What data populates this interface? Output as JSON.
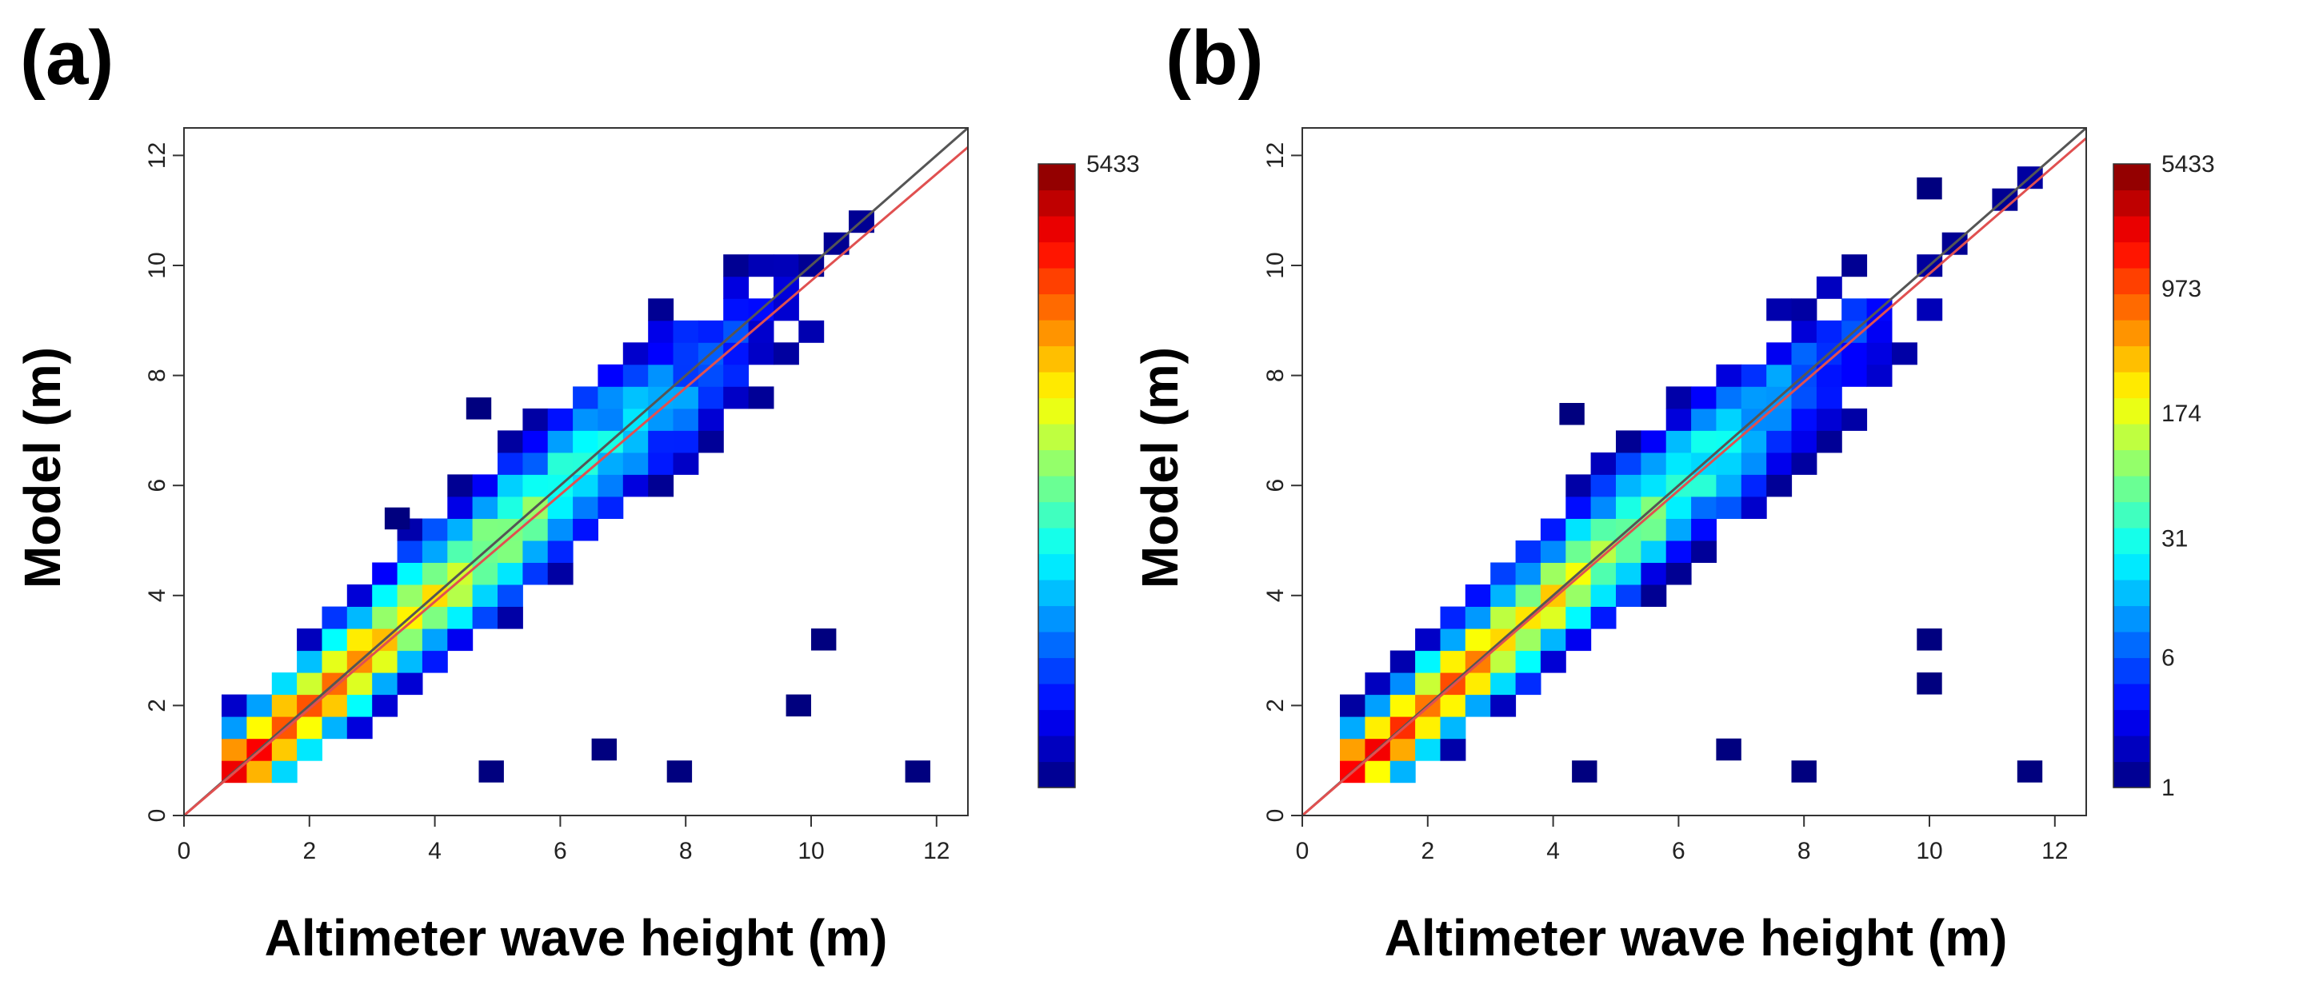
{
  "figure": {
    "colors": {
      "diagonal": "#555555",
      "fit": "#e05050",
      "frame": "#333333",
      "background": "#ffffff"
    },
    "colormap": [
      "#00007f",
      "#0000ff",
      "#007fff",
      "#00ffff",
      "#7fff7f",
      "#ffff00",
      "#ff7f00",
      "#ff0000",
      "#7f0000"
    ]
  },
  "chart_data": [
    {
      "panel_label": "(a)",
      "type": "heatmap",
      "title": "",
      "xlabel": "Altimeter wave height (m)",
      "ylabel": "Model (m)",
      "xlim": [
        0,
        12.5
      ],
      "ylim": [
        0,
        12.5
      ],
      "xticks": [
        "0",
        "2",
        "4",
        "6",
        "8",
        "10",
        "12"
      ],
      "yticks": [
        "0",
        "2",
        "4",
        "6",
        "8",
        "10",
        "12"
      ],
      "bin_size": 0.4,
      "colorbar": {
        "min": 1,
        "max": 5433,
        "scale": "log",
        "tick_labels": [
          {
            "value": 5433,
            "label": "5433"
          }
        ]
      },
      "one_to_one_line": true,
      "regression": {
        "slope": 0.972,
        "intercept": 0.0
      },
      "scatter_outliers": [
        [
          10,
          3
        ],
        [
          9.6,
          1.8
        ],
        [
          6.5,
          1
        ],
        [
          7.7,
          0.6
        ],
        [
          11.5,
          0.6
        ],
        [
          4.7,
          0.6
        ],
        [
          4.5,
          7.2
        ],
        [
          3.2,
          5.2
        ]
      ]
    },
    {
      "panel_label": "(b)",
      "type": "heatmap",
      "title": "",
      "xlabel": "Altimeter wave height (m)",
      "ylabel": "Model (m)",
      "xlim": [
        0,
        12.5
      ],
      "ylim": [
        0,
        12.5
      ],
      "xticks": [
        "0",
        "2",
        "4",
        "6",
        "8",
        "10",
        "12"
      ],
      "yticks": [
        "0",
        "2",
        "4",
        "6",
        "8",
        "10",
        "12"
      ],
      "bin_size": 0.4,
      "colorbar": {
        "min": 1,
        "max": 5433,
        "scale": "log",
        "tick_labels": [
          {
            "value": 5433,
            "label": "5433"
          },
          {
            "value": 973,
            "label": "973"
          },
          {
            "value": 174,
            "label": "174"
          },
          {
            "value": 31,
            "label": "31"
          },
          {
            "value": 6,
            "label": "6"
          },
          {
            "value": 1,
            "label": "1"
          }
        ]
      },
      "one_to_one_line": true,
      "regression": {
        "slope": 0.985,
        "intercept": 0.0
      },
      "scatter_outliers": [
        [
          9.8,
          3
        ],
        [
          9.8,
          2.2
        ],
        [
          6.6,
          1
        ],
        [
          7.8,
          0.6
        ],
        [
          11.4,
          0.6
        ],
        [
          4.3,
          0.6
        ],
        [
          4.1,
          7.1
        ],
        [
          9.8,
          11.2
        ]
      ]
    }
  ]
}
